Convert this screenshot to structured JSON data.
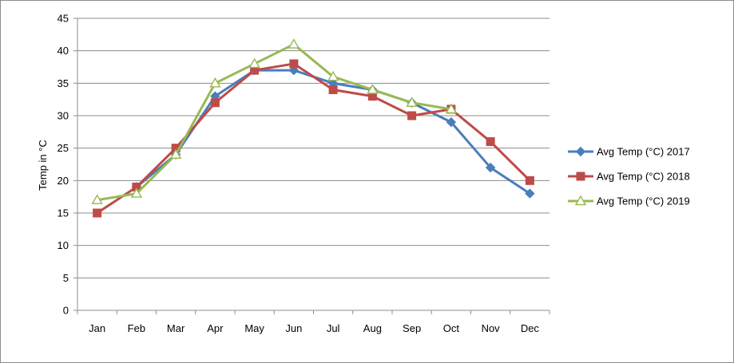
{
  "chart_data": {
    "type": "line",
    "title": "",
    "xlabel": "",
    "ylabel": "Temp in °C",
    "categories": [
      "Jan",
      "Feb",
      "Mar",
      "Apr",
      "May",
      "Jun",
      "Jul",
      "Aug",
      "Sep",
      "Oct",
      "Nov",
      "Dec"
    ],
    "ylim": [
      0,
      45
    ],
    "yticks": [
      0,
      5,
      10,
      15,
      20,
      25,
      30,
      35,
      40,
      45
    ],
    "grid": true,
    "legend_position": "right",
    "series": [
      {
        "name": "Avg Temp (°C) 2017",
        "color": "#4a7ebb",
        "marker": "diamond",
        "values": [
          null,
          19,
          24,
          33,
          37,
          37,
          35,
          34,
          32,
          29,
          22,
          18
        ]
      },
      {
        "name": "Avg Temp (°C) 2018",
        "color": "#be4b48",
        "marker": "square",
        "values": [
          15,
          19,
          25,
          32,
          37,
          38,
          34,
          33,
          30,
          31,
          26,
          20
        ]
      },
      {
        "name": "Avg Temp (°C) 2019",
        "color": "#98b954",
        "marker": "triangle-open",
        "values": [
          17,
          18,
          24,
          35,
          38,
          41,
          36,
          34,
          32,
          31,
          null,
          null
        ]
      }
    ]
  }
}
